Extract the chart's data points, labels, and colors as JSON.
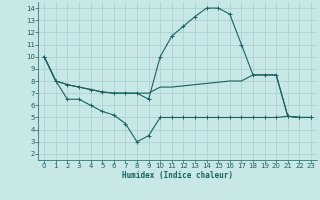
{
  "bg_color": "#c8e8e8",
  "grid_color": "#a8cece",
  "line_color": "#1a6060",
  "xlabel": "Humidex (Indice chaleur)",
  "xlim": [
    -0.5,
    23.5
  ],
  "ylim": [
    1.5,
    14.5
  ],
  "yticks": [
    2,
    3,
    4,
    5,
    6,
    7,
    8,
    9,
    10,
    11,
    12,
    13,
    14
  ],
  "xticks": [
    0,
    1,
    2,
    3,
    4,
    5,
    6,
    7,
    8,
    9,
    10,
    11,
    12,
    13,
    14,
    15,
    16,
    17,
    18,
    19,
    20,
    21,
    22,
    23
  ],
  "line_peak_x": [
    0,
    1,
    2,
    3,
    4,
    5,
    6,
    7,
    8,
    9,
    10,
    11,
    12,
    13,
    14,
    15,
    16,
    17,
    18,
    19,
    20,
    21,
    22,
    23
  ],
  "line_peak_y": [
    10,
    8.0,
    7.7,
    7.5,
    7.3,
    7.1,
    7.0,
    7.0,
    7.0,
    6.5,
    10.0,
    11.7,
    12.5,
    13.3,
    14.0,
    14.0,
    13.5,
    11.0,
    8.5,
    8.5,
    8.5,
    5.1,
    5.0,
    5.0
  ],
  "line_mid_x": [
    0,
    1,
    2,
    3,
    4,
    5,
    6,
    7,
    8,
    9,
    10,
    11,
    12,
    13,
    14,
    15,
    16,
    17,
    18,
    19,
    20,
    21,
    22,
    23
  ],
  "line_mid_y": [
    10,
    8.0,
    7.7,
    7.5,
    7.3,
    7.1,
    7.0,
    7.0,
    7.0,
    7.0,
    7.5,
    7.5,
    7.6,
    7.7,
    7.8,
    7.9,
    8.0,
    8.0,
    8.5,
    8.5,
    8.5,
    5.1,
    5.0,
    5.0
  ],
  "line_low_x": [
    0,
    1,
    2,
    3,
    4,
    5,
    6,
    7,
    8,
    9,
    10,
    11,
    12,
    13,
    14,
    15,
    16,
    17,
    18,
    19,
    20,
    21,
    22,
    23
  ],
  "line_low_y": [
    10,
    8.0,
    6.5,
    6.5,
    6.0,
    5.5,
    5.2,
    4.5,
    3.0,
    3.5,
    5.0,
    5.0,
    5.0,
    5.0,
    5.0,
    5.0,
    5.0,
    5.0,
    5.0,
    5.0,
    5.0,
    5.1,
    5.0,
    5.0
  ]
}
